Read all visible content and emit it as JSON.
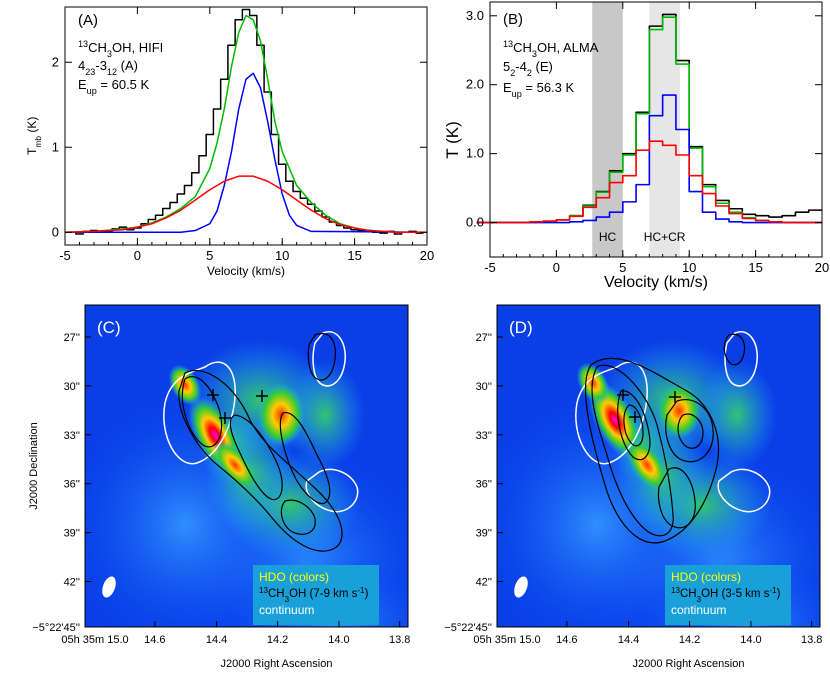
{
  "chart_data": [
    {
      "type": "line",
      "panel_label": "(A)",
      "annotation": [
        "13CH3OH, HIFI",
        "4 23-3 12 (A)",
        "E up = 60.5 K"
      ],
      "xlabel": "Velocity (km/s)",
      "ylabel": "T mb (K)",
      "xlim": [
        -5,
        20
      ],
      "ylim": [
        -0.15,
        2.65
      ],
      "xticks": [
        -5,
        0,
        5,
        10,
        15,
        20
      ],
      "yticks": [
        0,
        1,
        2
      ],
      "grid": false,
      "series": [
        {
          "color": "#000000",
          "style": "step",
          "x": [
            -4.5,
            -4.0,
            -3.5,
            -3.0,
            -2.5,
            -2.0,
            -1.5,
            -1.0,
            -0.5,
            0.0,
            0.5,
            1.0,
            1.5,
            2.0,
            2.5,
            3.0,
            3.5,
            4.0,
            4.5,
            5.0,
            5.5,
            6.0,
            6.5,
            7.0,
            7.5,
            8.0,
            8.5,
            9.0,
            9.5,
            10.0,
            10.5,
            11.0,
            11.5,
            12.0,
            12.5,
            13.0,
            13.5,
            14.0,
            14.5,
            15.0,
            15.5,
            16.0,
            16.5,
            17.0,
            17.5,
            18.0,
            18.5,
            19.0,
            19.5
          ],
          "y": [
            0.0,
            -0.02,
            0.01,
            0.02,
            0.0,
            0.01,
            0.04,
            0.06,
            0.03,
            0.05,
            0.1,
            0.15,
            0.2,
            0.28,
            0.35,
            0.45,
            0.55,
            0.7,
            0.9,
            1.15,
            1.45,
            1.8,
            2.2,
            2.5,
            2.62,
            2.55,
            2.2,
            1.65,
            1.15,
            0.8,
            0.6,
            0.48,
            0.4,
            0.33,
            0.25,
            0.18,
            0.12,
            0.08,
            0.05,
            0.03,
            0.02,
            0.02,
            0.0,
            -0.01,
            0.01,
            -0.02,
            0.0,
            0.01,
            -0.01
          ]
        },
        {
          "color": "#00bb00",
          "style": "line",
          "x": [
            -5,
            -3,
            -1,
            0,
            1,
            2,
            3,
            4,
            5,
            5.5,
            6,
            6.5,
            7,
            7.5,
            8,
            8.5,
            9,
            9.5,
            10,
            11,
            12,
            13,
            14,
            15,
            16,
            18,
            20
          ],
          "y": [
            0.0,
            0.01,
            0.04,
            0.06,
            0.11,
            0.18,
            0.28,
            0.42,
            0.75,
            1.05,
            1.45,
            1.95,
            2.35,
            2.55,
            2.5,
            2.25,
            1.8,
            1.3,
            0.95,
            0.55,
            0.35,
            0.2,
            0.1,
            0.05,
            0.02,
            0.0,
            0.0
          ]
        },
        {
          "color": "#0000ff",
          "style": "line",
          "x": [
            -5,
            3,
            4,
            5,
            5.5,
            6,
            6.5,
            7,
            7.5,
            8,
            8.5,
            9,
            9.5,
            10,
            10.5,
            11,
            12,
            20
          ],
          "y": [
            0.0,
            0.0,
            0.02,
            0.1,
            0.25,
            0.55,
            0.95,
            1.45,
            1.8,
            1.87,
            1.7,
            1.3,
            0.85,
            0.45,
            0.2,
            0.08,
            0.01,
            0.0
          ]
        },
        {
          "color": "#ff0000",
          "style": "line",
          "x": [
            -5,
            -3,
            -1,
            0,
            1,
            2,
            3,
            4,
            5,
            6,
            7,
            8,
            9,
            10,
            11,
            12,
            13,
            14,
            15,
            16,
            18,
            20
          ],
          "y": [
            0.0,
            0.01,
            0.03,
            0.06,
            0.1,
            0.17,
            0.26,
            0.38,
            0.5,
            0.6,
            0.66,
            0.66,
            0.6,
            0.5,
            0.38,
            0.26,
            0.16,
            0.09,
            0.05,
            0.02,
            0.0,
            0.0
          ]
        }
      ]
    },
    {
      "type": "line",
      "panel_label": "(B)",
      "annotation": [
        "13CH3OH, ALMA",
        "5 2-4 2 (E)",
        "E up = 56.3 K"
      ],
      "xlabel": "Velocity (km/s)",
      "ylabel": "T (K)",
      "xlim": [
        -5,
        20
      ],
      "ylim": [
        -0.5,
        3.2
      ],
      "xticks": [
        -5,
        0,
        5,
        10,
        15,
        20
      ],
      "yticks": [
        0.0,
        1.0,
        2.0,
        3.0
      ],
      "bands": [
        {
          "label": "HC",
          "from": 2.7,
          "to": 5.0,
          "color": "#c8c8c8"
        },
        {
          "label": "HC+CR",
          "from": 7.0,
          "to": 9.3,
          "color": "#e6e6e6"
        }
      ],
      "series": [
        {
          "color": "#000000",
          "style": "step",
          "x": [
            -5.5,
            -4.5,
            -3.5,
            -2.5,
            -1.5,
            -0.5,
            0.5,
            1.5,
            2.5,
            3.5,
            4.5,
            5.5,
            6.5,
            7.5,
            8.5,
            9.5,
            10.5,
            11.5,
            12.5,
            13.5,
            14.5,
            15.5,
            16.5,
            17.5,
            18.5,
            19.5
          ],
          "y": [
            0.0,
            0.0,
            0.0,
            0.0,
            0.01,
            0.02,
            0.04,
            0.1,
            0.25,
            0.45,
            0.75,
            1.0,
            1.6,
            2.85,
            3.02,
            2.35,
            1.1,
            0.55,
            0.32,
            0.2,
            0.12,
            0.1,
            0.08,
            0.1,
            0.15,
            0.18
          ]
        },
        {
          "color": "#00bb00",
          "style": "step",
          "x": [
            -5.5,
            -4.5,
            -3.5,
            -2.5,
            -1.5,
            -0.5,
            0.5,
            1.5,
            2.5,
            3.5,
            4.5,
            5.5,
            6.5,
            7.5,
            8.5,
            9.5,
            10.5,
            11.5,
            12.5,
            13.5,
            14.5,
            15.5,
            16.5,
            17.5,
            18.5,
            19.5
          ],
          "y": [
            0.0,
            0.0,
            0.0,
            0.0,
            0.01,
            0.02,
            0.04,
            0.1,
            0.24,
            0.44,
            0.73,
            0.98,
            1.58,
            2.8,
            2.98,
            2.3,
            1.08,
            0.52,
            0.28,
            0.15,
            0.07,
            0.03,
            0.01,
            0.0,
            0.0,
            0.0
          ]
        },
        {
          "color": "#0000ff",
          "style": "step",
          "x": [
            -5.5,
            -4.5,
            -3.5,
            -2.5,
            -1.5,
            -0.5,
            0.5,
            1.5,
            2.5,
            3.5,
            4.5,
            5.5,
            6.5,
            7.5,
            8.5,
            9.5,
            10.5,
            11.5,
            12.5,
            13.5,
            14.5,
            15.5,
            16.5,
            17.5,
            18.5,
            19.5
          ],
          "y": [
            0.0,
            0.0,
            0.0,
            0.0,
            0.0,
            0.0,
            0.0,
            0.01,
            0.03,
            0.08,
            0.15,
            0.3,
            0.55,
            1.55,
            1.85,
            1.35,
            0.45,
            0.15,
            0.05,
            0.01,
            0.0,
            0.0,
            0.0,
            0.0,
            0.0,
            0.0
          ]
        },
        {
          "color": "#ff0000",
          "style": "step",
          "x": [
            -5.5,
            -4.5,
            -3.5,
            -2.5,
            -1.5,
            -0.5,
            0.5,
            1.5,
            2.5,
            3.5,
            4.5,
            5.5,
            6.5,
            7.5,
            8.5,
            9.5,
            10.5,
            11.5,
            12.5,
            13.5,
            14.5,
            15.5,
            16.5,
            17.5,
            18.5,
            19.5
          ],
          "y": [
            0.0,
            0.0,
            0.0,
            0.0,
            0.01,
            0.02,
            0.04,
            0.09,
            0.22,
            0.36,
            0.58,
            0.68,
            1.05,
            1.18,
            1.12,
            0.98,
            0.68,
            0.42,
            0.24,
            0.13,
            0.06,
            0.03,
            0.01,
            0.0,
            0.0,
            0.0
          ]
        }
      ]
    },
    {
      "type": "heatmap",
      "panel_label": "(C)",
      "xlabel": "J2000 Right Ascension",
      "ylabel": "J2000 Declination",
      "xticks": [
        "14s.6",
        "14s.4",
        "14s.2",
        "14s.0",
        "13s.8"
      ],
      "xtick_first": "05h35m15s.0",
      "yticks": [
        "27''",
        "30''",
        "33''",
        "36''",
        "39''",
        "42''"
      ],
      "ytick_first": "−5°22'45''",
      "legend": [
        "HDO (colors)",
        "13CH3OH (7-9 km s-1)",
        "continuum"
      ]
    },
    {
      "type": "heatmap",
      "panel_label": "(D)",
      "xlabel": "J2000 Right Ascension",
      "xticks": [
        "14s.6",
        "14s.4",
        "14s.2",
        "14s.0",
        "13s.8"
      ],
      "xtick_first": "05h35m15s.0",
      "yticks": [
        "27''",
        "30''",
        "33''",
        "36''",
        "39''",
        "42''"
      ],
      "ytick_first": "−5°22'45''",
      "legend": [
        "HDO (colors)",
        "13CH3OH (3-5 km s-1)",
        "continuum"
      ]
    }
  ]
}
